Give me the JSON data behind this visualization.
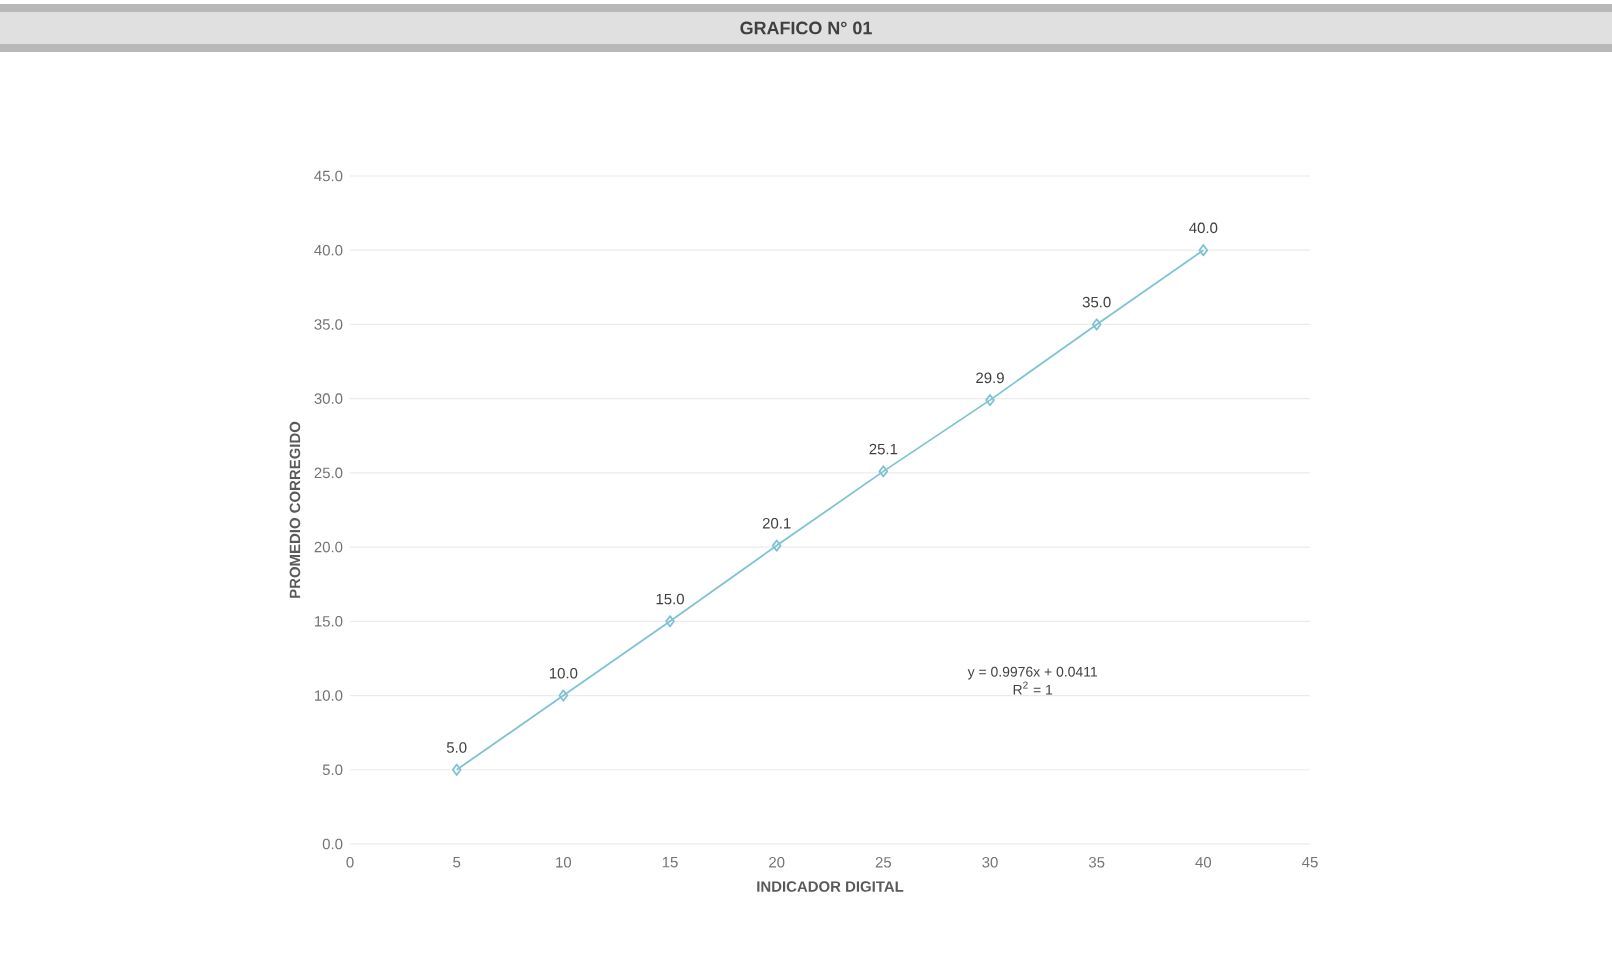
{
  "chart_data": {
    "type": "line",
    "title": "GRAFICO N° 01",
    "xlabel": "INDICADOR DIGITAL",
    "ylabel": "PROMEDIO CORREGIDO",
    "x": [
      5,
      10,
      15,
      20,
      25,
      30,
      35,
      40
    ],
    "series": [
      {
        "color": "#7fc3d3",
        "values": [
          5.0,
          10.0,
          15.0,
          20.1,
          25.1,
          29.9,
          35.0,
          40.0
        ],
        "value_labels": [
          "5.0",
          "10.0",
          "15.0",
          "20.1",
          "25.1",
          "29.9",
          "35.0",
          "40.0"
        ]
      }
    ],
    "xlim": [
      0,
      45
    ],
    "xticks": [
      0,
      5,
      10,
      15,
      20,
      25,
      30,
      35,
      40,
      45
    ],
    "ylim": [
      0,
      45
    ],
    "yticks": [
      {
        "value": 0,
        "label": "0.0"
      },
      {
        "value": 5,
        "label": "5.0"
      },
      {
        "value": 10,
        "label": "10.0"
      },
      {
        "value": 15,
        "label": "15.0"
      },
      {
        "value": 20,
        "label": "20.0"
      },
      {
        "value": 25,
        "label": "25.0"
      },
      {
        "value": 30,
        "label": "30.0"
      },
      {
        "value": 35,
        "label": "35.0"
      },
      {
        "value": 40,
        "label": "40.0"
      },
      {
        "value": 45,
        "label": "45.0"
      }
    ],
    "grid": "y",
    "marker": "diamond",
    "line_style": "solid",
    "annotations": [
      "y = 0.9976x + 0.0411",
      "R$^{2}$ = 1"
    ]
  }
}
